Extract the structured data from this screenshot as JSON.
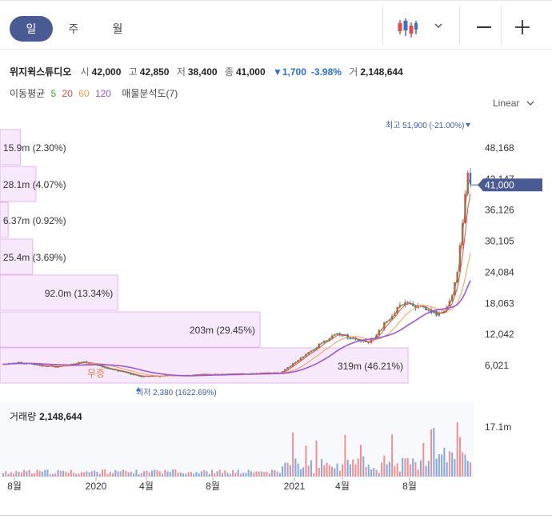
{
  "toolbar": {
    "tabs": [
      {
        "label": "일",
        "active": true
      },
      {
        "label": "주",
        "active": false
      },
      {
        "label": "월",
        "active": false
      }
    ],
    "chart_type_icon": "candlestick-icon",
    "chevron_icon": "chevron-down-icon",
    "zoom_out_icon": "minus-icon",
    "zoom_in_icon": "plus-icon"
  },
  "stock": {
    "name": "위지윅스튜디오",
    "open_label": "시",
    "open": "42,000",
    "high_label": "고",
    "high": "42,850",
    "low_label": "저",
    "low": "38,400",
    "close_label": "종",
    "close": "41,000",
    "change": "▼1,700",
    "change_pct": "-3.98%",
    "volume_label": "거",
    "volume": "2,148,644"
  },
  "ma_legend": {
    "title": "이동평균",
    "periods": [
      "5",
      "20",
      "60",
      "120"
    ],
    "colors": [
      "#3aa53a",
      "#e34b4b",
      "#f0a05a",
      "#9b59d0"
    ],
    "profile": "매물분석도(7)"
  },
  "scale_label": "Linear",
  "colors": {
    "up": "#e34b4b",
    "down": "#3d6ec9",
    "current_tag": "#4a5a92",
    "profile_fill": "#f7e8fb",
    "profile_stroke": "#e2b8ef"
  },
  "chart_data": {
    "type": "candlestick",
    "y_ticks": [
      "48,168",
      "42,147",
      "36,126",
      "30,105",
      "24,084",
      "18,063",
      "12,042",
      "6,021"
    ],
    "y_tick_values": [
      48168,
      42147,
      36126,
      30105,
      24084,
      18063,
      12042,
      6021
    ],
    "x_ticks": [
      "8월",
      "2020",
      "4월",
      "8월",
      "2021",
      "4월",
      "8월"
    ],
    "current_price": "41,000",
    "current_value": 41000,
    "high_annotation": "최고 51,900 (-21.00%)",
    "high_value": 51900,
    "low_annotation": "최저 2,380 (1622.69%)",
    "low_value": 2380,
    "unpriced_marker": "무증",
    "volume_profile": [
      {
        "label": "15.9m (2.30%)",
        "pct": 2.3
      },
      {
        "label": "28.1m (4.07%)",
        "pct": 4.07
      },
      {
        "label": "6.37m (0.92%)",
        "pct": 0.92
      },
      {
        "label": "25.4m (3.69%)",
        "pct": 3.69
      },
      {
        "label": "92.0m (13.34%)",
        "pct": 13.34
      },
      {
        "label": "203m (29.45%)",
        "pct": 29.45
      },
      {
        "label": "319m (46.21%)",
        "pct": 46.21
      }
    ],
    "volume_title": "거래량",
    "volume_value": "2,148,644",
    "volume_tick": "17.1m",
    "volume_tick_value": 17100000
  }
}
